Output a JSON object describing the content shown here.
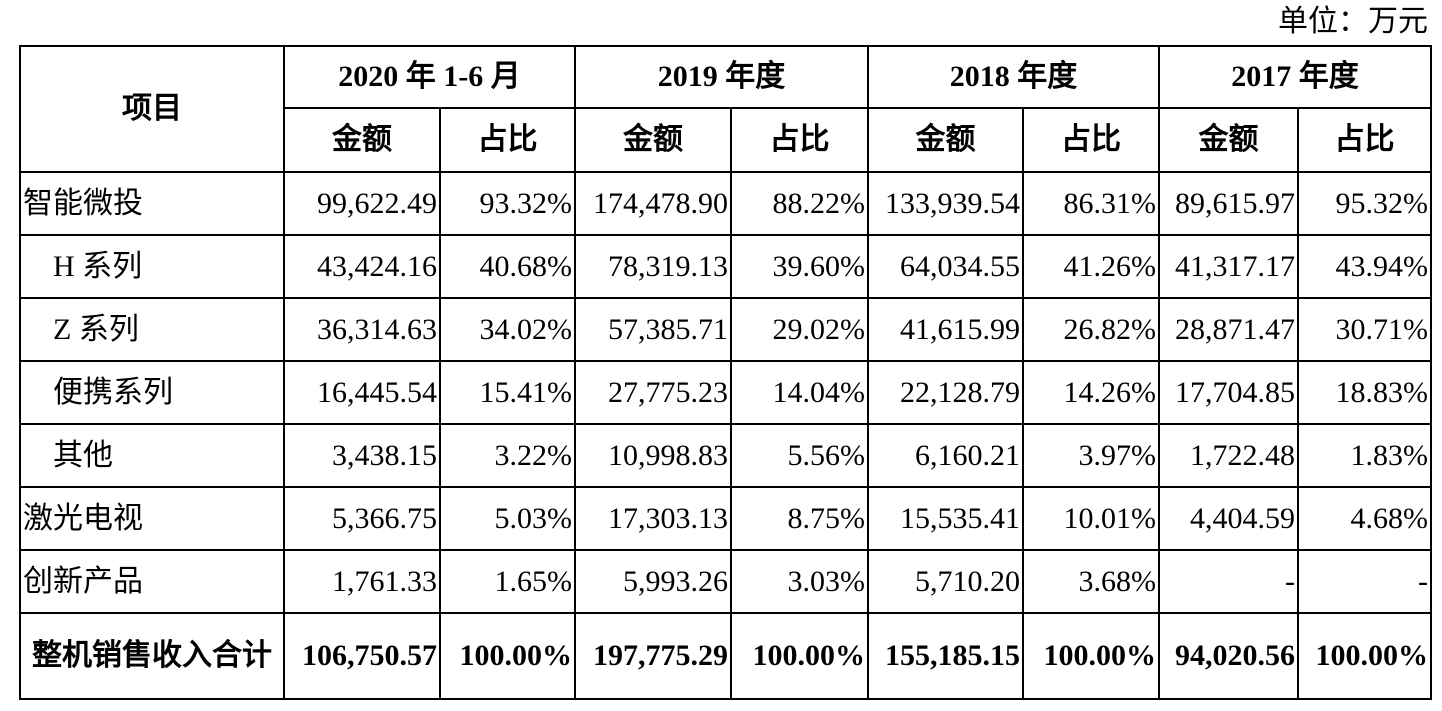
{
  "unit": "单位：万元",
  "header": {
    "item": "项目",
    "periods": [
      "2020 年 1-6 月",
      "2019 年度",
      "2018 年度",
      "2017 年度"
    ],
    "amount": "金额",
    "ratio": "占比"
  },
  "rows": [
    {
      "label": "智能微投",
      "indent": false,
      "values": [
        "99,622.49",
        "93.32%",
        "174,478.90",
        "88.22%",
        "133,939.54",
        "86.31%",
        "89,615.97",
        "95.32%"
      ]
    },
    {
      "label": "H 系列",
      "indent": true,
      "values": [
        "43,424.16",
        "40.68%",
        "78,319.13",
        "39.60%",
        "64,034.55",
        "41.26%",
        "41,317.17",
        "43.94%"
      ]
    },
    {
      "label": "Z 系列",
      "indent": true,
      "values": [
        "36,314.63",
        "34.02%",
        "57,385.71",
        "29.02%",
        "41,615.99",
        "26.82%",
        "28,871.47",
        "30.71%"
      ]
    },
    {
      "label": "便携系列",
      "indent": true,
      "values": [
        "16,445.54",
        "15.41%",
        "27,775.23",
        "14.04%",
        "22,128.79",
        "14.26%",
        "17,704.85",
        "18.83%"
      ]
    },
    {
      "label": "其他",
      "indent": true,
      "values": [
        "3,438.15",
        "3.22%",
        "10,998.83",
        "5.56%",
        "6,160.21",
        "3.97%",
        "1,722.48",
        "1.83%"
      ]
    },
    {
      "label": "激光电视",
      "indent": false,
      "values": [
        "5,366.75",
        "5.03%",
        "17,303.13",
        "8.75%",
        "15,535.41",
        "10.01%",
        "4,404.59",
        "4.68%"
      ]
    },
    {
      "label": "创新产品",
      "indent": false,
      "values": [
        "1,761.33",
        "1.65%",
        "5,993.26",
        "3.03%",
        "5,710.20",
        "3.68%",
        "-",
        "-"
      ]
    }
  ],
  "total": {
    "label": "整机销售收入合计",
    "values": [
      "106,750.57",
      "100.00%",
      "197,775.29",
      "100.00%",
      "155,185.15",
      "100.00%",
      "94,020.56",
      "100.00%"
    ]
  }
}
